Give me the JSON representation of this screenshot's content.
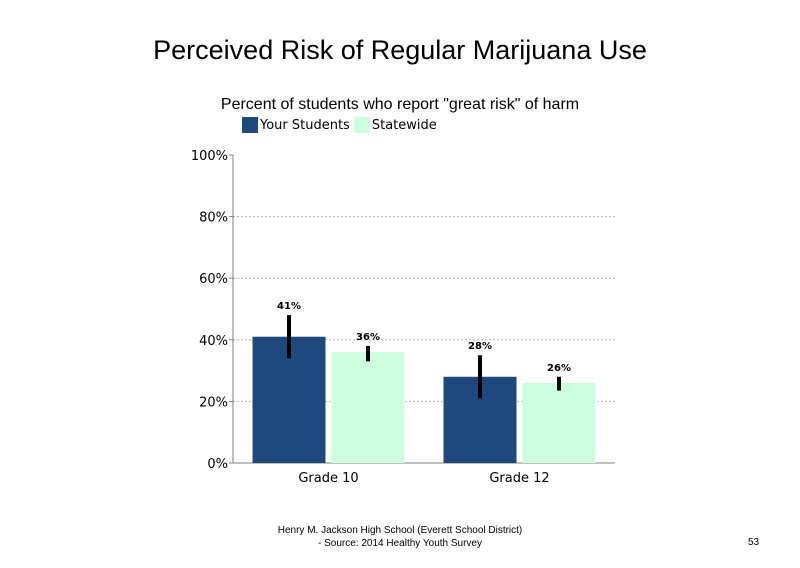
{
  "chart_data": {
    "type": "bar",
    "title": "Perceived Risk of Regular Marijuana Use",
    "subtitle": "Percent of students who report \"great risk\" of harm",
    "categories": [
      "Grade 10",
      "Grade 12"
    ],
    "series": [
      {
        "name": "Your Students",
        "values": [
          41,
          28
        ],
        "labels": [
          "41%",
          "28%"
        ],
        "error": [
          [
            34,
            48
          ],
          [
            21,
            35
          ]
        ],
        "color": "#1f497d"
      },
      {
        "name": "Statewide",
        "values": [
          36,
          26
        ],
        "labels": [
          "36%",
          "26%"
        ],
        "error": [
          [
            33,
            38
          ],
          [
            23.5,
            28
          ]
        ],
        "color": "#ccffdd"
      }
    ],
    "ylim": [
      0,
      100
    ],
    "yticks": [
      0,
      20,
      40,
      60,
      80,
      100
    ],
    "ytick_labels": [
      "0%",
      "20%",
      "40%",
      "60%",
      "80%",
      "100%"
    ],
    "grid": true,
    "legend": "top"
  },
  "footer": {
    "line1": "Henry M. Jackson High School (Everett School District)",
    "line2": "- Source: 2014 Healthy Youth Survey"
  },
  "page_number": "53"
}
